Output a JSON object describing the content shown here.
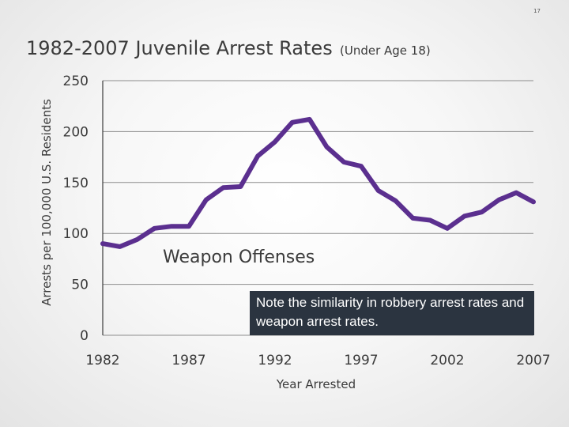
{
  "slide": {
    "number": "17",
    "note": "Note the similarity in robbery arrest rates and weapon arrest rates."
  },
  "chart_data": {
    "type": "line",
    "title": "1982-2007 Juvenile Arrest Rates",
    "subtitle": "(Under Age 18)",
    "xlabel": "Year Arrested",
    "ylabel": "Arrests per 100,000 U.S. Residents",
    "xlim": [
      1982,
      2007
    ],
    "ylim": [
      0,
      250
    ],
    "x_ticks": [
      "1982",
      "1987",
      "1992",
      "1997",
      "2002",
      "2007"
    ],
    "y_ticks": [
      "0",
      "50",
      "100",
      "150",
      "200",
      "250"
    ],
    "grid": true,
    "series": [
      {
        "name": "Weapon Offenses",
        "color": "#5b2f8f",
        "x": [
          1982,
          1983,
          1984,
          1985,
          1986,
          1987,
          1988,
          1989,
          1990,
          1991,
          1992,
          1993,
          1994,
          1995,
          1996,
          1997,
          1998,
          1999,
          2000,
          2001,
          2002,
          2003,
          2004,
          2005,
          2006,
          2007
        ],
        "values": [
          90,
          87,
          94,
          105,
          107,
          107,
          133,
          145,
          146,
          176,
          190,
          209,
          212,
          185,
          170,
          166,
          142,
          132,
          115,
          113,
          105,
          117,
          121,
          133,
          140,
          131
        ]
      }
    ]
  }
}
